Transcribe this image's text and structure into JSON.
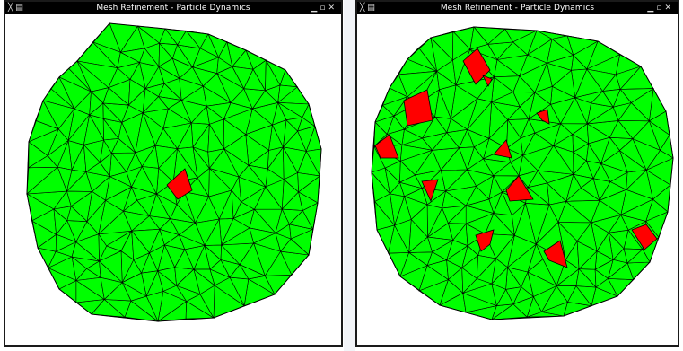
{
  "windows": [
    {
      "id": "left",
      "title": "Mesh Refinement - Particle Dynamics",
      "controls": {
        "menu": "╳ ▤",
        "minimize": "▁",
        "maximize": "▫",
        "close": "✕"
      }
    },
    {
      "id": "right",
      "title": "Mesh Refinement - Particle Dynamics",
      "controls": {
        "menu": "╳ ▤",
        "minimize": "▁",
        "maximize": "▫",
        "close": "✕"
      }
    }
  ],
  "colors": {
    "mesh_fill": "#00ff00",
    "mesh_edge": "#000000",
    "refined_cell": "#ff0000",
    "titlebar": "#000000",
    "title_text": "#ffffff"
  }
}
